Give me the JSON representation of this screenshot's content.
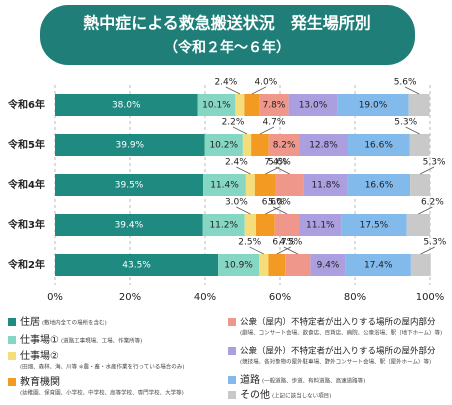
{
  "chart_data": {
    "type": "stacked_bar_horizontal",
    "title": "熱中症による救急搬送状況　発生場所別",
    "subtitle": "（令和２年～６年）",
    "categories": [
      "令和6年",
      "令和5年",
      "令和4年",
      "令和3年",
      "令和2年"
    ],
    "series": [
      {
        "name": "住居",
        "note": "(敷地内全ての場所を含む)",
        "color": "#1f8a80",
        "values": [
          38.0,
          39.9,
          39.5,
          39.4,
          43.5
        ],
        "value_labels": [
          "38.0%",
          "39.9%",
          "39.5%",
          "39.4%",
          "43.5%"
        ]
      },
      {
        "name": "仕事場①",
        "note": "(道路工事現場、工場、作業所等)",
        "color": "#86d6c4",
        "values": [
          10.1,
          10.2,
          11.4,
          11.2,
          10.9
        ],
        "value_labels": [
          "10.1%",
          "10.2%",
          "11.4%",
          "11.2%",
          "10.9%"
        ]
      },
      {
        "name": "仕事場②",
        "note": "(田畑、森林、海、川等 ※農・畜・水産作業を行っている場合のみ)",
        "color": "#f5dd7c",
        "values": [
          2.4,
          2.2,
          2.4,
          3.0,
          2.5
        ],
        "value_labels": [
          "2.4%",
          "2.2%",
          "2.4%",
          "3.0%",
          "2.5%"
        ]
      },
      {
        "name": "教育機関",
        "note": "(幼稚園、保育園、小学校、中学校、高等学校、専門学校、大学等)",
        "color": "#f29a22",
        "values": [
          4.0,
          4.7,
          5.6,
          5.0,
          4.5
        ],
        "value_labels": [
          "4.0%",
          "4.7%",
          "5.6%",
          "5.0%",
          "4.5%"
        ]
      },
      {
        "name": "公衆（屋内）不特定者が出入りする場所の屋内部分",
        "note": "(劇場、コンサート会場、飲食店、百貨店、病院、公衆浴場、駅（地下ホーム）等)",
        "color": "#f0978c",
        "values": [
          7.8,
          8.2,
          7.4,
          6.6,
          6.7
        ],
        "value_labels": [
          "7.8%",
          "8.2%",
          "7.4%",
          "6.6%",
          "6.7%"
        ]
      },
      {
        "name": "公衆（屋外）不特定者が出入りする場所の屋外部分",
        "note": "(競技場、各対象物の屋外駐車場、野外コンサート会場、駅（屋外ホーム）等)",
        "color": "#ab9fe0",
        "values": [
          13.0,
          12.8,
          11.8,
          11.1,
          9.4
        ],
        "value_labels": [
          "13.0%",
          "12.8%",
          "11.8%",
          "11.1%",
          "9.4%"
        ]
      },
      {
        "name": "道路",
        "note": "(一般道路、歩道、有料道路、高速道路等)",
        "color": "#82baec",
        "values": [
          19.0,
          16.6,
          16.6,
          17.5,
          17.4
        ],
        "value_labels": [
          "19.0%",
          "16.6%",
          "16.6%",
          "17.5%",
          "17.4%"
        ]
      },
      {
        "name": "その他",
        "note": "(上記に該当しない項目)",
        "color": "#c9c9c9",
        "values": [
          5.6,
          5.3,
          5.3,
          6.2,
          5.3
        ],
        "value_labels": [
          "5.6%",
          "5.3%",
          "5.3%",
          "6.2%",
          "5.3%"
        ]
      }
    ],
    "xlim": [
      0,
      100
    ],
    "xticks": [
      {
        "value": 0,
        "label": "0%"
      },
      {
        "value": 20,
        "label": "20%"
      },
      {
        "value": 40,
        "label": "40%"
      },
      {
        "value": 60,
        "label": "60%"
      },
      {
        "value": 80,
        "label": "80%"
      },
      {
        "value": 100,
        "label": "100%"
      }
    ],
    "grid": true
  }
}
